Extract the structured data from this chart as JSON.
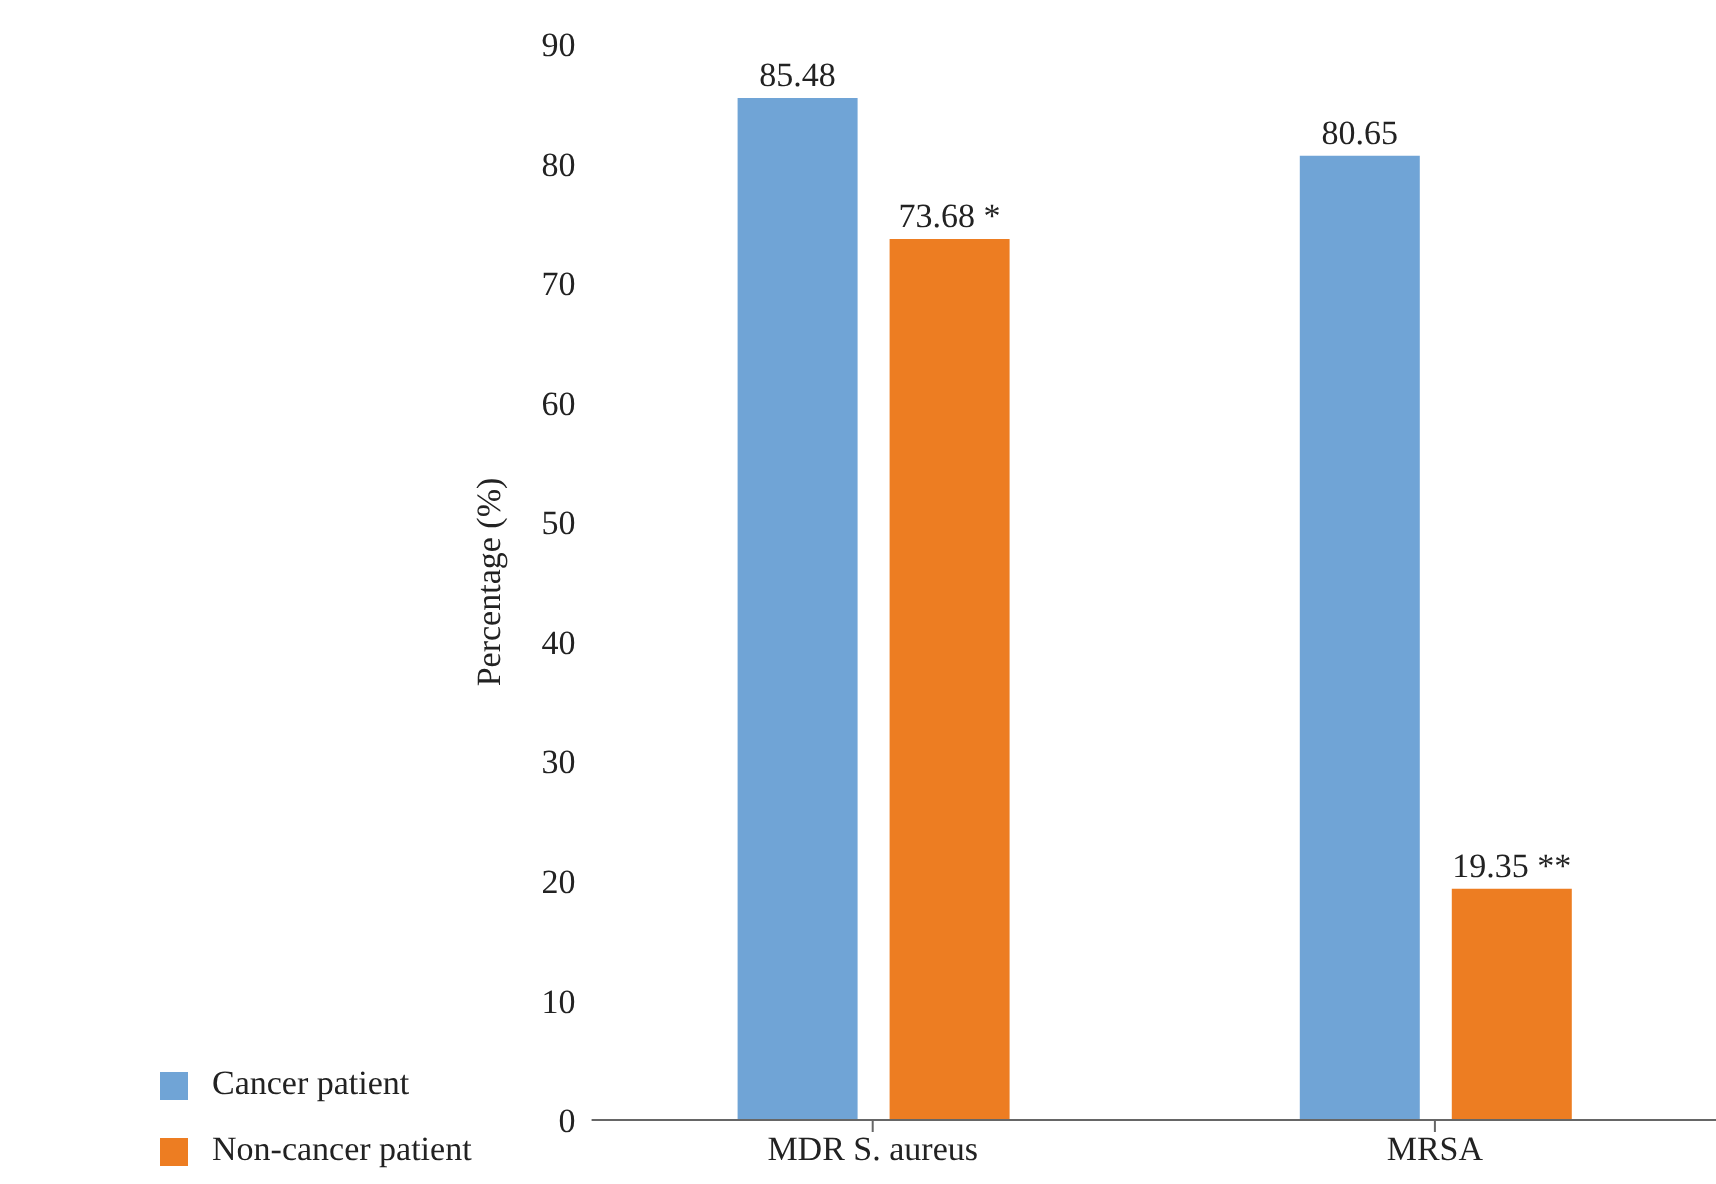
{
  "chart_data": {
    "type": "bar",
    "ylabel": "Percentage (%)",
    "categories": [
      "MDR S. aureus",
      "MRSA"
    ],
    "series": [
      {
        "name": "Cancer patient",
        "color": "#70a4d6",
        "values": [
          85.48,
          80.65
        ],
        "value_labels": [
          "85.48",
          "80.65"
        ]
      },
      {
        "name": "Non-cancer patient",
        "color": "#ed7d22",
        "values": [
          73.68,
          19.35
        ],
        "value_labels": [
          "73.68 *",
          "19.35 **"
        ]
      }
    ],
    "ylim": [
      0,
      90
    ],
    "yticks": [
      0,
      10,
      20,
      30,
      40,
      50,
      60,
      70,
      80,
      90
    ],
    "grid": false,
    "legend": "bottom left"
  }
}
